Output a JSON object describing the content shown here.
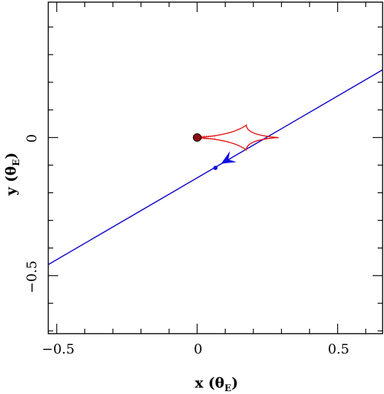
{
  "chart_data": {
    "type": "line",
    "xlabel": "x (θ",
    "xlabel_sub": "E",
    "xlabel_close": ")",
    "ylabel": "y (θ",
    "ylabel_sub": "E",
    "ylabel_close": ")",
    "xlim": [
      -0.53,
      0.66
    ],
    "ylim": [
      -0.71,
      0.49
    ],
    "xticks": [
      {
        "value": -0.5,
        "label": "−0.5"
      },
      {
        "value": 0,
        "label": "0"
      },
      {
        "value": 0.5,
        "label": "0.5"
      }
    ],
    "yticks": [
      {
        "value": -0.5,
        "label": "−0.5"
      },
      {
        "value": 0,
        "label": "0"
      }
    ],
    "x_minor_step": 0.1,
    "y_minor_step": 0.1,
    "source_trajectory": {
      "color": "#1a10c8",
      "points": [
        [
          -0.53,
          -0.46
        ],
        [
          0.66,
          0.245
        ]
      ]
    },
    "trajectory_arrow": {
      "color": "#1010e0",
      "tip": [
        0.085,
        -0.095
      ],
      "direction": [
        -1,
        -0.59
      ]
    },
    "source_point": {
      "color": "#1010e0",
      "x": 0.065,
      "y": -0.11
    },
    "lens_mass": {
      "fill": "#8b1010",
      "x": 0.0,
      "y": 0.0
    },
    "caustic": {
      "color": "#e01010",
      "cusps": {
        "left": [
          0.0,
          0.0
        ],
        "top": [
          0.175,
          0.045
        ],
        "right": [
          0.29,
          0.0
        ],
        "bottom": [
          0.175,
          -0.045
        ]
      }
    }
  }
}
